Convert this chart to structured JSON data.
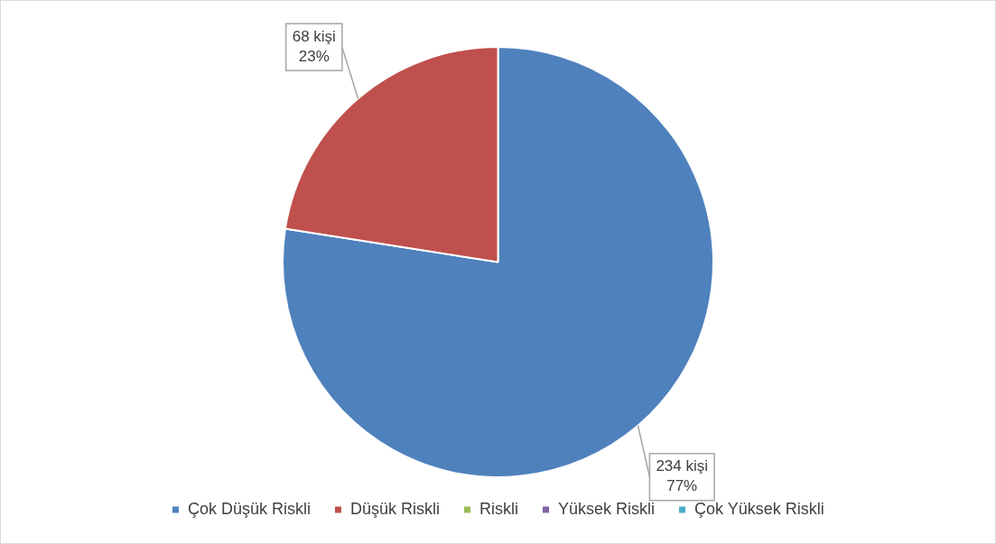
{
  "chart_data": {
    "type": "pie",
    "categories": [
      "Çok Düşük Riskli",
      "Düşük Riskli",
      "Riskli",
      "Yüksek Riskli",
      "Çok Yüksek Riskli"
    ],
    "values": [
      234,
      68,
      0,
      0,
      0
    ],
    "colors": [
      "#4f81bd",
      "#c0504d",
      "#9bbb59",
      "#8064a2",
      "#4bacc6"
    ],
    "value_labels": [
      "234 kişi\n77%",
      "68 kişi\n23%",
      null,
      null,
      null
    ],
    "legend": "bottom"
  }
}
